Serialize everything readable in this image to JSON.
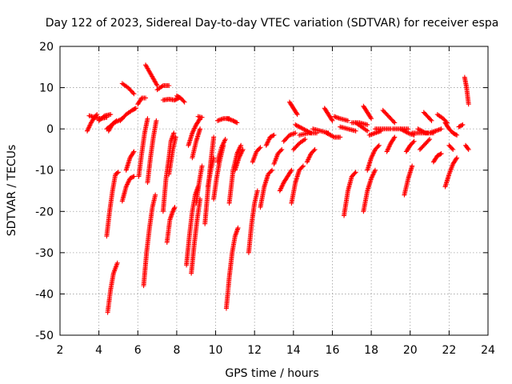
{
  "chart_data": {
    "type": "scatter",
    "title": "Day 122 of 2023, Sidereal Day-to-day VTEC variation (SDTVAR) for receiver espa",
    "xlabel": "GPS time / hours",
    "ylabel": "SDTVAR / TECUs",
    "xlim": [
      2,
      24
    ],
    "ylim": [
      -50,
      20
    ],
    "x_ticks": [
      2,
      4,
      6,
      8,
      10,
      12,
      14,
      16,
      18,
      20,
      22,
      24
    ],
    "y_ticks": [
      -50,
      -40,
      -30,
      -20,
      -10,
      0,
      10,
      20
    ],
    "x_tick_labels": [
      "2",
      "4",
      "6",
      "8",
      "10",
      "12",
      "14",
      "16",
      "18",
      "20",
      "22",
      "24"
    ],
    "y_tick_labels": [
      "-50",
      "-40",
      "-30",
      "-20",
      "-10",
      "0",
      "10",
      "20"
    ],
    "grid": true,
    "marker": "+",
    "color": "#ff0000",
    "tracks": [
      [
        [
          3.4,
          -0.5
        ],
        [
          3.6,
          1.5
        ],
        [
          3.8,
          3
        ],
        [
          3.9,
          3.5
        ]
      ],
      [
        [
          3.5,
          3.2
        ],
        [
          3.8,
          2.8
        ],
        [
          4.1,
          2.5
        ],
        [
          4.4,
          2.8
        ]
      ],
      [
        [
          4.0,
          2.0
        ],
        [
          4.3,
          3.2
        ],
        [
          4.6,
          3.5
        ]
      ],
      [
        [
          4.4,
          0
        ],
        [
          4.8,
          1.5
        ],
        [
          5.2,
          2.5
        ]
      ],
      [
        [
          4.5,
          -0.5
        ],
        [
          4.7,
          1.2
        ],
        [
          4.9,
          2.0
        ]
      ],
      [
        [
          4.4,
          -26
        ],
        [
          4.55,
          -20
        ],
        [
          4.7,
          -15
        ],
        [
          4.85,
          -11
        ],
        [
          5.0,
          -10.5
        ]
      ],
      [
        [
          4.45,
          -44.5
        ],
        [
          4.6,
          -39
        ],
        [
          4.75,
          -35
        ],
        [
          4.95,
          -32.5
        ]
      ],
      [
        [
          5.1,
          2.0
        ],
        [
          5.4,
          3.5
        ],
        [
          5.7,
          4.5
        ],
        [
          5.9,
          5.0
        ]
      ],
      [
        [
          5.2,
          11
        ],
        [
          5.5,
          10
        ],
        [
          5.8,
          8.5
        ]
      ],
      [
        [
          5.2,
          -17.5
        ],
        [
          5.4,
          -14
        ],
        [
          5.6,
          -12
        ],
        [
          5.8,
          -11.5
        ]
      ],
      [
        [
          5.4,
          -10
        ],
        [
          5.6,
          -7
        ],
        [
          5.8,
          -5.5
        ]
      ],
      [
        [
          6.0,
          6
        ],
        [
          6.2,
          7.5
        ],
        [
          6.4,
          7.5
        ]
      ],
      [
        [
          6.4,
          15.5
        ],
        [
          6.7,
          13
        ],
        [
          7.0,
          10.5
        ]
      ],
      [
        [
          6.05,
          -11.5
        ],
        [
          6.2,
          -6
        ],
        [
          6.35,
          -1
        ],
        [
          6.5,
          2.5
        ]
      ],
      [
        [
          6.3,
          -38
        ],
        [
          6.45,
          -30
        ],
        [
          6.6,
          -24
        ],
        [
          6.75,
          -19
        ],
        [
          6.9,
          -16
        ]
      ],
      [
        [
          6.5,
          -13
        ],
        [
          6.65,
          -7
        ],
        [
          6.8,
          -2
        ],
        [
          6.95,
          2
        ]
      ],
      [
        [
          7.0,
          9.5
        ],
        [
          7.3,
          10.5
        ],
        [
          7.6,
          10.5
        ]
      ],
      [
        [
          7.3,
          7
        ],
        [
          7.6,
          7.2
        ],
        [
          7.9,
          7.0
        ],
        [
          8.1,
          7.5
        ]
      ],
      [
        [
          8.0,
          8
        ],
        [
          8.2,
          7.5
        ],
        [
          8.4,
          6.5
        ]
      ],
      [
        [
          7.3,
          -20
        ],
        [
          7.45,
          -12
        ],
        [
          7.6,
          -7
        ],
        [
          7.7,
          -3
        ],
        [
          7.85,
          -1
        ]
      ],
      [
        [
          7.5,
          -27.5
        ],
        [
          7.65,
          -22
        ],
        [
          7.8,
          -20
        ],
        [
          7.9,
          -19
        ]
      ],
      [
        [
          7.6,
          -11
        ],
        [
          7.8,
          -5
        ],
        [
          7.95,
          -2
        ]
      ],
      [
        [
          8.6,
          -4
        ],
        [
          8.8,
          -1
        ],
        [
          9.0,
          1
        ],
        [
          9.2,
          2.5
        ]
      ],
      [
        [
          9.1,
          3
        ],
        [
          9.3,
          2.8
        ]
      ],
      [
        [
          8.8,
          -7
        ],
        [
          9.0,
          -3
        ],
        [
          9.2,
          0
        ]
      ],
      [
        [
          8.5,
          -33
        ],
        [
          8.65,
          -26
        ],
        [
          8.8,
          -20
        ],
        [
          8.95,
          -16
        ],
        [
          9.1,
          -14
        ]
      ],
      [
        [
          8.75,
          -35
        ],
        [
          8.9,
          -28
        ],
        [
          9.05,
          -22
        ],
        [
          9.2,
          -17
        ]
      ],
      [
        [
          9.0,
          -18
        ],
        [
          9.15,
          -13
        ],
        [
          9.3,
          -9
        ]
      ],
      [
        [
          9.45,
          -23
        ],
        [
          9.6,
          -15
        ],
        [
          9.75,
          -8
        ],
        [
          9.9,
          -2
        ]
      ],
      [
        [
          9.6,
          -14
        ],
        [
          9.75,
          -10
        ],
        [
          9.9,
          -7
        ]
      ],
      [
        [
          9.9,
          -17
        ],
        [
          10.05,
          -12
        ],
        [
          10.2,
          -8
        ],
        [
          10.4,
          -4
        ]
      ],
      [
        [
          10.1,
          -8
        ],
        [
          10.3,
          -4.5
        ],
        [
          10.5,
          -2.5
        ]
      ],
      [
        [
          10.1,
          2
        ],
        [
          10.4,
          2.5
        ],
        [
          10.7,
          2.5
        ]
      ],
      [
        [
          10.6,
          2.5
        ],
        [
          10.9,
          2
        ],
        [
          11.1,
          1.5
        ]
      ],
      [
        [
          10.55,
          -43.5
        ],
        [
          10.7,
          -36
        ],
        [
          10.85,
          -30
        ],
        [
          11.0,
          -26
        ],
        [
          11.15,
          -24
        ]
      ],
      [
        [
          10.7,
          -18
        ],
        [
          10.9,
          -10
        ],
        [
          11.1,
          -6
        ],
        [
          11.3,
          -4
        ]
      ],
      [
        [
          11.0,
          -10
        ],
        [
          11.2,
          -7
        ],
        [
          11.4,
          -5
        ]
      ],
      [
        [
          11.7,
          -30
        ],
        [
          11.85,
          -23
        ],
        [
          12.0,
          -18
        ],
        [
          12.15,
          -15
        ]
      ],
      [
        [
          11.9,
          -8
        ],
        [
          12.1,
          -5.5
        ],
        [
          12.3,
          -4.5
        ]
      ],
      [
        [
          12.3,
          -19
        ],
        [
          12.5,
          -14
        ],
        [
          12.7,
          -11
        ],
        [
          12.9,
          -10
        ]
      ],
      [
        [
          12.6,
          -4
        ],
        [
          12.8,
          -2
        ],
        [
          13.0,
          -1.5
        ]
      ],
      [
        [
          13.0,
          -8.5
        ],
        [
          13.2,
          -6
        ],
        [
          13.4,
          -5
        ]
      ],
      [
        [
          13.3,
          -15
        ],
        [
          13.5,
          -13
        ],
        [
          13.7,
          -11.5
        ],
        [
          13.9,
          -10
        ]
      ],
      [
        [
          13.5,
          -3
        ],
        [
          13.8,
          -1.5
        ],
        [
          14.1,
          -1
        ]
      ],
      [
        [
          13.9,
          -18
        ],
        [
          14.1,
          -13
        ],
        [
          14.3,
          -10
        ],
        [
          14.5,
          -9
        ]
      ],
      [
        [
          14.0,
          -5
        ],
        [
          14.3,
          -3.5
        ],
        [
          14.6,
          -2.5
        ]
      ],
      [
        [
          14.1,
          1
        ],
        [
          14.5,
          0
        ],
        [
          14.9,
          -1
        ]
      ],
      [
        [
          13.8,
          6.5
        ],
        [
          14.0,
          5
        ],
        [
          14.2,
          3.5
        ]
      ],
      [
        [
          14.3,
          -1.5
        ],
        [
          14.8,
          -1.0
        ],
        [
          15.2,
          -1
        ]
      ],
      [
        [
          14.7,
          -8
        ],
        [
          14.9,
          -6
        ],
        [
          15.1,
          -5
        ]
      ],
      [
        [
          15.0,
          0
        ],
        [
          15.4,
          -0.5
        ],
        [
          15.8,
          -1
        ]
      ],
      [
        [
          15.6,
          5
        ],
        [
          15.8,
          3.5
        ],
        [
          16.0,
          2.0
        ]
      ],
      [
        [
          15.7,
          -1
        ],
        [
          16.1,
          -2
        ],
        [
          16.4,
          -2
        ]
      ],
      [
        [
          16.1,
          3
        ],
        [
          16.4,
          2.5
        ],
        [
          16.8,
          2
        ]
      ],
      [
        [
          16.4,
          0.5
        ],
        [
          16.8,
          0
        ],
        [
          17.2,
          -0.5
        ]
      ],
      [
        [
          16.6,
          -21
        ],
        [
          16.8,
          -15
        ],
        [
          17.0,
          -11.5
        ],
        [
          17.2,
          -10.5
        ]
      ],
      [
        [
          17.0,
          1.5
        ],
        [
          17.4,
          1.5
        ],
        [
          17.8,
          1.0
        ]
      ],
      [
        [
          17.2,
          1.5
        ],
        [
          17.5,
          0.5
        ],
        [
          17.8,
          -0.5
        ]
      ],
      [
        [
          17.6,
          5.5
        ],
        [
          17.8,
          4
        ],
        [
          18.0,
          2.5
        ]
      ],
      [
        [
          17.6,
          -20
        ],
        [
          17.8,
          -15
        ],
        [
          18.0,
          -12
        ],
        [
          18.2,
          -10
        ]
      ],
      [
        [
          17.8,
          -10
        ],
        [
          18.0,
          -7
        ],
        [
          18.2,
          -5
        ],
        [
          18.4,
          -4
        ]
      ],
      [
        [
          17.9,
          -1.5
        ],
        [
          18.2,
          -1.0
        ],
        [
          18.5,
          -0.5
        ]
      ],
      [
        [
          18.2,
          0
        ],
        [
          18.6,
          0
        ],
        [
          19.0,
          0
        ]
      ],
      [
        [
          18.6,
          4.5
        ],
        [
          18.9,
          3
        ],
        [
          19.2,
          1.5
        ]
      ],
      [
        [
          18.8,
          -5.5
        ],
        [
          19.0,
          -3.5
        ],
        [
          19.2,
          -2
        ]
      ],
      [
        [
          19.1,
          0
        ],
        [
          19.5,
          0
        ],
        [
          19.9,
          0
        ]
      ],
      [
        [
          19.5,
          0
        ],
        [
          19.9,
          -1
        ],
        [
          20.2,
          -1.5
        ]
      ],
      [
        [
          19.7,
          -16
        ],
        [
          19.9,
          -12
        ],
        [
          20.1,
          -9
        ]
      ],
      [
        [
          19.8,
          -5.5
        ],
        [
          20.0,
          -4
        ],
        [
          20.2,
          -3.0
        ]
      ],
      [
        [
          20.1,
          -1
        ],
        [
          20.5,
          -1
        ],
        [
          20.9,
          -1
        ]
      ],
      [
        [
          20.4,
          0
        ],
        [
          20.8,
          -1
        ],
        [
          21.2,
          -1
        ]
      ],
      [
        [
          20.5,
          -5
        ],
        [
          20.8,
          -3.5
        ],
        [
          21.0,
          -2.5
        ]
      ],
      [
        [
          20.7,
          4
        ],
        [
          20.9,
          3
        ],
        [
          21.1,
          2
        ]
      ],
      [
        [
          21.0,
          -1
        ],
        [
          21.3,
          -0.5
        ],
        [
          21.6,
          0
        ]
      ],
      [
        [
          21.2,
          -8
        ],
        [
          21.4,
          -6.5
        ],
        [
          21.6,
          -6
        ]
      ],
      [
        [
          21.4,
          3.5
        ],
        [
          21.7,
          2.5
        ],
        [
          21.9,
          1.5
        ]
      ],
      [
        [
          21.8,
          -14
        ],
        [
          22.0,
          -11
        ],
        [
          22.2,
          -8.5
        ],
        [
          22.4,
          -7
        ]
      ],
      [
        [
          21.8,
          1.5
        ],
        [
          22.0,
          0
        ],
        [
          22.2,
          -1
        ],
        [
          22.4,
          -1.5
        ]
      ],
      [
        [
          22.0,
          -4
        ],
        [
          22.2,
          -5
        ]
      ],
      [
        [
          22.5,
          0.5
        ],
        [
          22.7,
          1
        ]
      ],
      [
        [
          22.8,
          12.5
        ],
        [
          22.9,
          10
        ],
        [
          23.0,
          6
        ]
      ],
      [
        [
          22.85,
          -4
        ],
        [
          23.0,
          -5
        ]
      ]
    ]
  }
}
